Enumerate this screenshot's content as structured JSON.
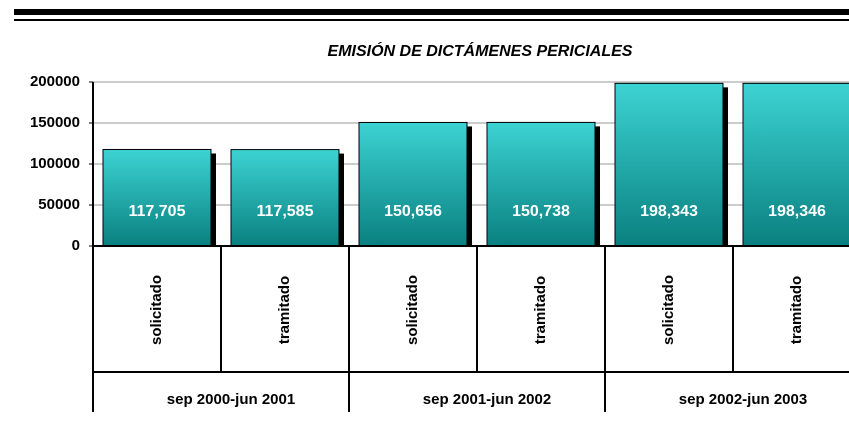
{
  "chart_data": {
    "type": "bar",
    "title": "EMISIÓN DE DICTÁMENES PERICIALES",
    "categories": [
      "solicitado",
      "tramitado",
      "solicitado",
      "tramitado",
      "solicitado",
      "tramitado"
    ],
    "groups": [
      "sep 2000-jun 2001",
      "sep 2001-jun 2002",
      "sep 2002-jun 2003"
    ],
    "values": [
      117705,
      117585,
      150656,
      150738,
      198343,
      198346
    ],
    "value_labels": [
      "117,705",
      "117,585",
      "150,656",
      "150,738",
      "198,343",
      "198,346"
    ],
    "color": "#33cccc",
    "ylim": [
      0,
      200000
    ],
    "yticks": [
      0,
      50000,
      100000,
      150000,
      200000
    ],
    "grid": true
  }
}
